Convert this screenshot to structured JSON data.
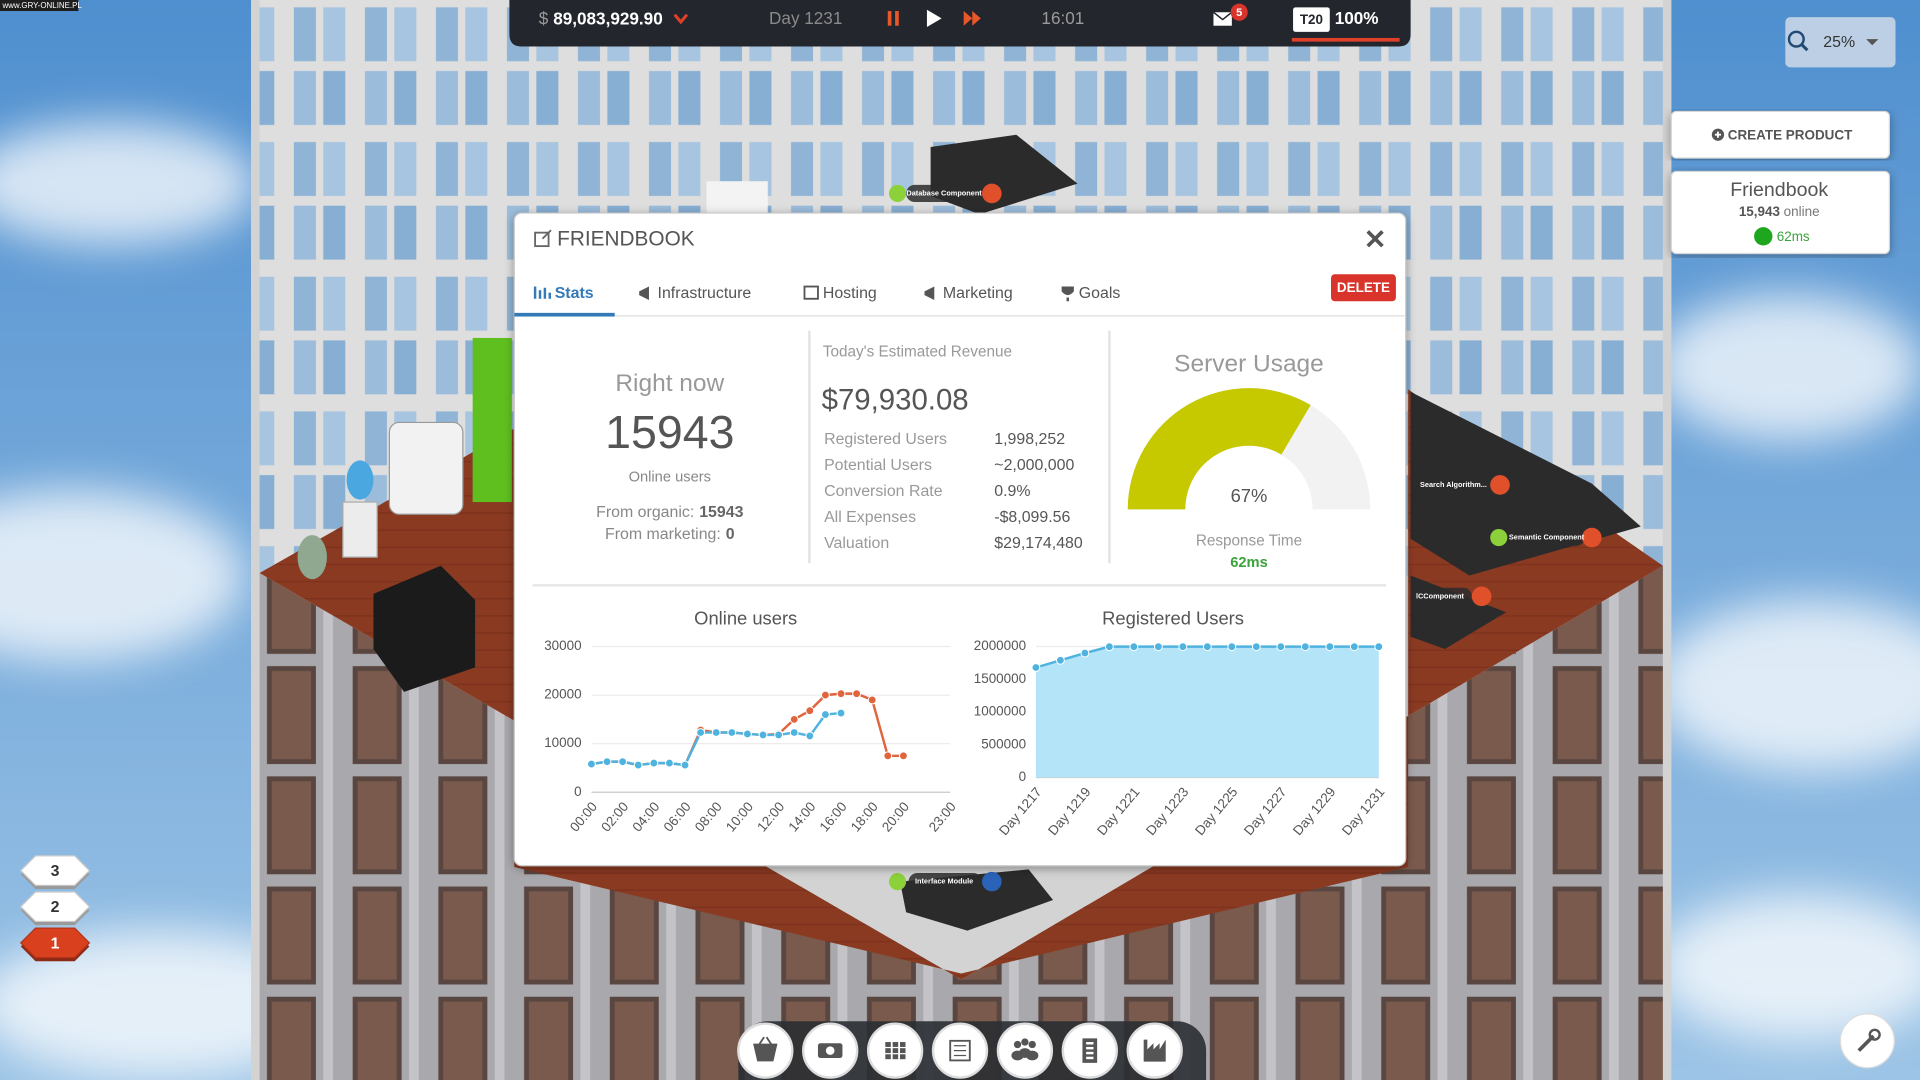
{
  "watermark": "www.GRY-ONLINE.PL",
  "top_bar": {
    "currency": "$",
    "money": "89,083,929.90",
    "day": "Day 1231",
    "time": "16:01",
    "mail_count": "5",
    "tier": "T20",
    "percent": "100%"
  },
  "zoom": "25%",
  "sidebar": {
    "create_product": "CREATE PRODUCT",
    "product": {
      "name": "Friendbook",
      "online": "15,943",
      "online_label": "online",
      "latency": "62ms"
    }
  },
  "floors": [
    "3",
    "2",
    "1"
  ],
  "scene_labels": [
    "Database Component",
    "Search Algorithm...",
    "Semantic Component",
    "lCComponent",
    "Interface Module"
  ],
  "window": {
    "title": "FRIENDBOOK",
    "tabs": [
      "Stats",
      "Infrastructure",
      "Hosting",
      "Marketing",
      "Goals"
    ],
    "delete": "DELETE",
    "right_now": {
      "heading": "Right now",
      "value": "15943",
      "label": "Online users",
      "organic_label": "From organic:",
      "organic": "15943",
      "marketing_label": "From marketing:",
      "marketing": "0"
    },
    "revenue": {
      "label": "Today's Estimated Revenue",
      "value": "$79,930.08",
      "rows": [
        {
          "label": "Registered Users",
          "value": "1,998,252"
        },
        {
          "label": "Potential Users",
          "value": "~2,000,000"
        },
        {
          "label": "Conversion Rate",
          "value": "0.9%"
        },
        {
          "label": "All Expenses",
          "value": "-$8,099.56"
        },
        {
          "label": "Valuation",
          "value": "$29,174,480"
        }
      ]
    },
    "server": {
      "title": "Server Usage",
      "value": 67,
      "value_label": "67%",
      "range": [
        0,
        100
      ],
      "color": "#c6c800",
      "response_label": "Response Time",
      "response": "62ms"
    }
  },
  "chart_data": [
    {
      "type": "line",
      "title": "Online users",
      "categories": [
        "00:00",
        null,
        "02:00",
        null,
        "04:00",
        null,
        "06:00",
        null,
        "08:00",
        null,
        "10:00",
        null,
        "12:00",
        null,
        "14:00",
        null,
        "16:00",
        null,
        "18:00",
        null,
        "20:00",
        null,
        null,
        "23:00"
      ],
      "series": [
        {
          "color": "#e0643c",
          "values": [
            5800,
            6300,
            6300,
            5600,
            6000,
            6000,
            5600,
            12800,
            12300,
            12300,
            12000,
            11800,
            12000,
            15000,
            16800,
            20000,
            20300,
            20300,
            19000,
            7500,
            7500,
            null,
            null,
            null
          ]
        },
        {
          "color": "#4fb3df",
          "values": [
            5800,
            6300,
            6300,
            5600,
            6000,
            6000,
            5600,
            12300,
            12300,
            12300,
            12000,
            11800,
            11800,
            12300,
            11600,
            16000,
            16300,
            null,
            null,
            null,
            null,
            null,
            null,
            null
          ]
        }
      ],
      "ylim": [
        0,
        30000
      ],
      "yticks": [
        0,
        10000,
        20000,
        30000
      ],
      "grid": true
    },
    {
      "type": "area",
      "title": "Registered Users",
      "categories": [
        "Day 1217",
        null,
        "Day 1219",
        null,
        "Day 1221",
        null,
        "Day 1223",
        null,
        "Day 1225",
        null,
        "Day 1227",
        null,
        "Day 1229",
        null,
        "Day 1231"
      ],
      "series": [
        {
          "color": "#4fb3df",
          "fill": "#b4e4f8",
          "values": [
            1680000,
            1790000,
            1900000,
            1998000,
            1998000,
            1998000,
            1998000,
            1998000,
            1998000,
            1998000,
            1998000,
            1998000,
            1998000,
            1998000,
            1998252
          ]
        }
      ],
      "ylim": [
        0,
        2000000
      ],
      "yticks": [
        0,
        500000,
        1000000,
        1500000,
        2000000
      ],
      "grid": true
    }
  ]
}
